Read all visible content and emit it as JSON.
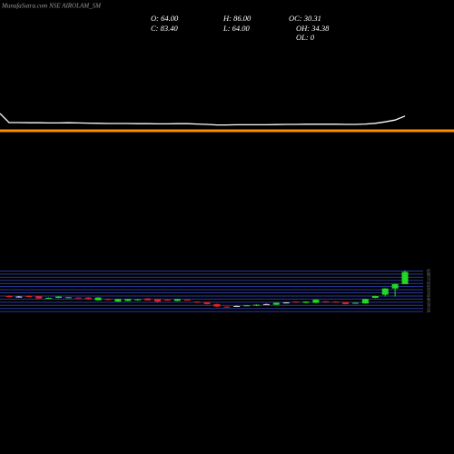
{
  "chart_data": {
    "type": "candlestick",
    "title": "MunafaSutra.com NSE AIROLAM_SM",
    "stats": [
      "O: 64.00",
      "H: 86.00",
      "OC: 30.31",
      "C: 83.40",
      "L: 64.00",
      "OH: 34.38",
      "OL: 0"
    ],
    "up_color": "#22d822",
    "down_color": "#e8211e",
    "flat_color": "#dddddd",
    "open": [
      45,
      44,
      45,
      44.5,
      41,
      42,
      42,
      42.5,
      42.5,
      38,
      40,
      36,
      37,
      38,
      41,
      40,
      39,
      37,
      39,
      36,
      35,
      32,
      28,
      29,
      29,
      29.5,
      32,
      31,
      34.5,
      36,
      34,
      34,
      36.5,
      36,
      35,
      33,
      33,
      42,
      47,
      57,
      64
    ],
    "close": [
      43.5,
      44,
      43.5,
      41,
      42,
      44,
      43,
      41.5,
      40,
      42.5,
      38.5,
      40,
      40,
      39.5,
      38,
      36,
      38,
      40,
      38.5,
      34.5,
      32,
      28,
      27,
      29,
      30,
      31,
      32,
      34,
      34.5,
      35,
      36,
      39,
      35.5,
      35.5,
      32,
      34,
      40,
      45,
      57,
      64,
      83.4
    ],
    "high": [
      46,
      45,
      46,
      45,
      42.5,
      44.5,
      43.5,
      43,
      43,
      43,
      41,
      40.5,
      40.5,
      40,
      41.5,
      40.5,
      39.5,
      40.5,
      39.5,
      36.5,
      35.5,
      32.5,
      28.5,
      29.5,
      30.5,
      31.5,
      32.5,
      34.5,
      35,
      36.5,
      36.5,
      39.5,
      37,
      36.5,
      35.5,
      34.5,
      40.5,
      45.5,
      57.5,
      64.5,
      86
    ],
    "low": [
      43,
      43.5,
      43,
      40.5,
      40.5,
      41.5,
      41.5,
      41,
      39.5,
      37.5,
      38,
      35.5,
      36.5,
      37.5,
      37.5,
      34,
      37.5,
      36.5,
      38,
      34,
      31.5,
      27.5,
      26.5,
      28.5,
      28.5,
      29,
      31.5,
      30.5,
      34,
      34.5,
      33.5,
      33.5,
      35,
      34.5,
      31.5,
      32.5,
      32.5,
      41.5,
      44,
      44,
      64
    ],
    "ylim": [
      10,
      90
    ],
    "yticks": [
      20,
      25,
      30,
      35,
      40,
      45,
      50,
      55,
      60,
      65,
      70,
      75,
      80,
      85
    ],
    "grid_color": "#2a3a9a",
    "indicator": {
      "color": "#ffffff",
      "ylim": [
        0,
        100
      ],
      "values": [
        25,
        25,
        24.5,
        24.5,
        24,
        24,
        24.5,
        24,
        23.5,
        23,
        22.5,
        22.5,
        22.5,
        22,
        22,
        21.5,
        21.5,
        22,
        22,
        21,
        20,
        18.5,
        18.5,
        19,
        19,
        19,
        19,
        19.5,
        20,
        20,
        20.5,
        20.5,
        20.5,
        20.5,
        20,
        20,
        21,
        23,
        27,
        32,
        43
      ]
    },
    "baseline_color": "#ff8c00"
  }
}
